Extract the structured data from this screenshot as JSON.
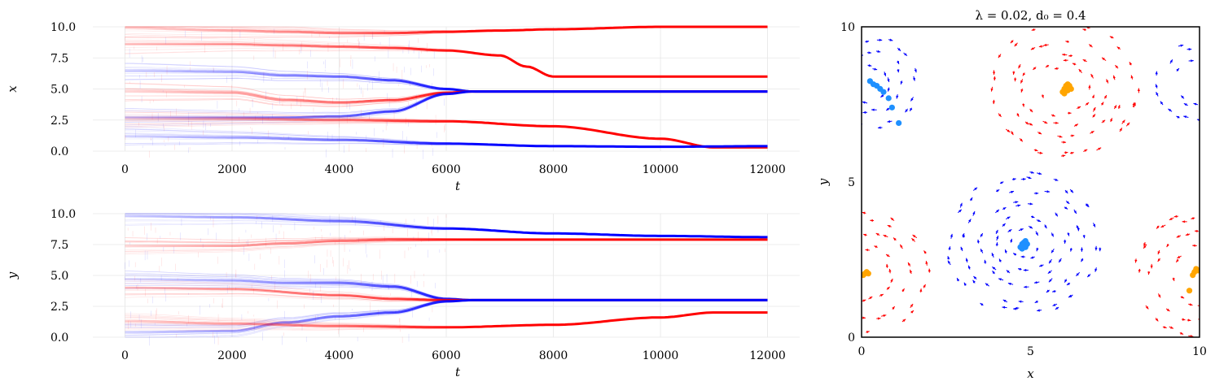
{
  "chart_data": [
    {
      "type": "line",
      "xlabel": "t",
      "ylabel": "x",
      "xlim": [
        -600,
        12600
      ],
      "ylim": [
        0,
        10
      ],
      "xticks": [
        "0",
        "2000",
        "4000",
        "6000",
        "8000",
        "10000",
        "12000"
      ],
      "yticks": [
        "0.0",
        "2.5",
        "5.0",
        "7.5",
        "10.0"
      ],
      "grid": true,
      "series": [
        {
          "color": "#ff0000",
          "x": [
            0,
            2000,
            3000,
            4000,
            5000,
            6000,
            7000,
            8000,
            10000,
            12000
          ],
          "values": [
            9.9,
            9.7,
            9.6,
            9.5,
            9.5,
            9.6,
            9.7,
            9.8,
            10.0,
            10.0
          ]
        },
        {
          "color": "#ff0000",
          "x": [
            0,
            2000,
            3000,
            4000,
            5000,
            6000,
            7000,
            7500,
            8000,
            12000
          ],
          "values": [
            8.6,
            8.6,
            8.5,
            8.4,
            8.3,
            8.1,
            7.7,
            6.8,
            6.0,
            6.0
          ]
        },
        {
          "color": "#0000ff",
          "x": [
            0,
            2000,
            3000,
            4000,
            5000,
            6000,
            6500,
            12000
          ],
          "values": [
            6.5,
            6.4,
            6.1,
            6.0,
            5.7,
            5.0,
            4.8,
            4.8
          ]
        },
        {
          "color": "#ff0000",
          "x": [
            0,
            2000,
            3000,
            4000,
            5000,
            6000,
            6500,
            12000
          ],
          "values": [
            4.8,
            4.7,
            4.1,
            3.9,
            4.1,
            4.7,
            4.8,
            4.8
          ]
        },
        {
          "color": "#0000ff",
          "x": [
            0,
            2000,
            3000,
            4000,
            5000,
            6000,
            6500,
            12000
          ],
          "values": [
            2.7,
            2.7,
            2.7,
            2.8,
            3.2,
            4.6,
            4.8,
            4.8
          ]
        },
        {
          "color": "#ff0000",
          "x": [
            0,
            2000,
            4000,
            6000,
            8000,
            10000,
            11000,
            12000
          ],
          "values": [
            2.6,
            2.6,
            2.5,
            2.4,
            2.0,
            1.0,
            0.3,
            0.3
          ]
        },
        {
          "color": "#0000ff",
          "x": [
            0,
            2000,
            4000,
            6000,
            8000,
            10000,
            12000
          ],
          "values": [
            1.2,
            1.1,
            0.9,
            0.6,
            0.4,
            0.35,
            0.4
          ]
        }
      ]
    },
    {
      "type": "line",
      "xlabel": "t",
      "ylabel": "y",
      "xlim": [
        -600,
        12600
      ],
      "ylim": [
        0,
        10
      ],
      "xticks": [
        "0",
        "2000",
        "4000",
        "6000",
        "8000",
        "10000",
        "12000"
      ],
      "yticks": [
        "0.0",
        "2.5",
        "5.0",
        "7.5",
        "10.0"
      ],
      "grid": true,
      "series": [
        {
          "color": "#0000ff",
          "x": [
            0,
            2000,
            4000,
            6000,
            8000,
            10000,
            12000
          ],
          "values": [
            9.8,
            9.7,
            9.4,
            8.8,
            8.4,
            8.2,
            8.1
          ]
        },
        {
          "color": "#ff0000",
          "x": [
            0,
            2000,
            3000,
            4000,
            5000,
            6000,
            8000,
            12000
          ],
          "values": [
            7.4,
            7.4,
            7.6,
            7.8,
            7.9,
            7.9,
            7.9,
            7.9
          ]
        },
        {
          "color": "#0000ff",
          "x": [
            0,
            2000,
            3000,
            4000,
            5000,
            6000,
            6500,
            12000
          ],
          "values": [
            4.7,
            4.6,
            4.4,
            4.4,
            4.1,
            3.1,
            3.0,
            3.0
          ]
        },
        {
          "color": "#ff0000",
          "x": [
            0,
            2000,
            4000,
            5000,
            6000,
            6500,
            12000
          ],
          "values": [
            4.0,
            3.9,
            3.4,
            3.1,
            3.0,
            3.0,
            3.0
          ]
        },
        {
          "color": "#0000ff",
          "x": [
            0,
            2000,
            3000,
            4000,
            5000,
            6000,
            6500,
            12000
          ],
          "values": [
            0.4,
            0.5,
            1.2,
            1.7,
            2.0,
            2.9,
            3.0,
            3.0
          ]
        },
        {
          "color": "#ff0000",
          "x": [
            0,
            2000,
            4000,
            6000,
            8000,
            10000,
            11000,
            12000
          ],
          "values": [
            1.3,
            1.1,
            0.9,
            0.8,
            1.0,
            1.6,
            2.0,
            2.0
          ]
        }
      ]
    },
    {
      "type": "scatter",
      "title": "λ = 0.02,  d₀ = 0.4",
      "xlabel": "x",
      "ylabel": "y",
      "xlim": [
        0,
        10
      ],
      "ylim": [
        0,
        10
      ],
      "xticks": [
        "0",
        "5",
        "10"
      ],
      "yticks": [
        "0",
        "5",
        "10"
      ],
      "grid": false,
      "vortex_colors": {
        "red": "#ff0000",
        "blue": "#0000ff"
      },
      "vortices": [
        {
          "color": "red",
          "center": [
            6.0,
            8.0
          ],
          "radii": [
            0.8,
            1.2,
            1.6,
            2.1
          ]
        },
        {
          "color": "blue",
          "center": [
            4.8,
            3.0
          ],
          "radii": [
            0.5,
            0.9,
            1.3,
            1.8,
            2.2
          ]
        },
        {
          "color": "red",
          "center": [
            10.0,
            2.0
          ],
          "radii": [
            0.9,
            1.4,
            1.9
          ]
        },
        {
          "color": "red",
          "center": [
            0.0,
            2.0
          ],
          "radii": [
            0.9,
            1.4,
            1.9
          ]
        },
        {
          "color": "blue",
          "center": [
            0.2,
            8.2
          ],
          "radii": [
            0.6,
            1.0,
            1.4
          ]
        },
        {
          "color": "blue",
          "center": [
            10.0,
            8.2
          ],
          "radii": [
            0.8,
            1.2
          ]
        }
      ],
      "points": [
        {
          "color": "#1e90ff",
          "x": [
            0.25,
            0.35,
            0.45,
            0.55,
            0.65,
            0.8,
            0.9,
            1.1
          ],
          "y": [
            8.25,
            8.15,
            8.1,
            8.0,
            7.9,
            7.7,
            7.4,
            6.9
          ]
        },
        {
          "color": "#ffa500",
          "x": [
            5.95,
            6.0,
            6.05,
            6.1,
            6.15,
            6.2,
            6.0,
            6.1
          ],
          "y": [
            7.9,
            8.0,
            8.1,
            8.15,
            8.1,
            8.0,
            7.85,
            7.95
          ]
        },
        {
          "color": "#1e90ff",
          "x": [
            4.7,
            4.75,
            4.8,
            4.85,
            4.9,
            4.8,
            4.75,
            4.85
          ],
          "y": [
            2.9,
            3.0,
            3.05,
            3.1,
            3.0,
            2.95,
            2.85,
            2.9
          ]
        },
        {
          "color": "#ffa500",
          "x": [
            0.05,
            0.1,
            0.15,
            0.2,
            9.8,
            9.85,
            9.9,
            9.95,
            9.7
          ],
          "y": [
            2.0,
            2.05,
            2.1,
            2.05,
            2.0,
            2.1,
            2.2,
            2.15,
            1.5
          ]
        }
      ]
    }
  ]
}
